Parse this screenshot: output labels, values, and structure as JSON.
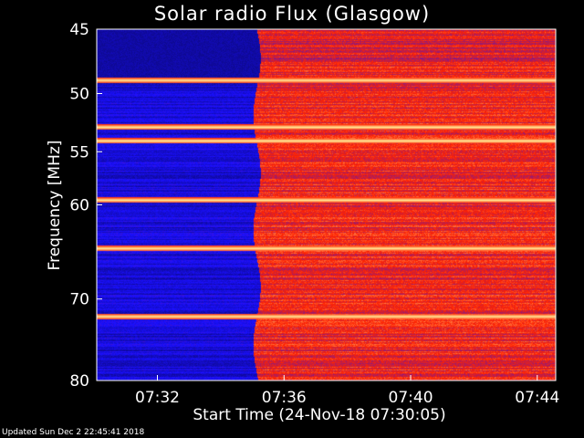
{
  "chart_data": {
    "type": "heatmap",
    "title": "Solar radio Flux (Glasgow)",
    "xlabel": "Start Time (24-Nov-18 07:30:05)",
    "ylabel": "Frequency [MHz]",
    "x_ticks": [
      "07:32",
      "07:36",
      "07:40",
      "07:44"
    ],
    "x_tick_minutes": [
      1.917,
      5.917,
      9.917,
      13.917
    ],
    "x_range_minutes": [
      0,
      14.5
    ],
    "y_ticks": [
      45,
      50,
      55,
      60,
      70,
      80
    ],
    "ylim": [
      45,
      80
    ],
    "y_scale": "log",
    "transition_minute": 5.05,
    "bright_bands_mhz": [
      48.9,
      52.8,
      54.0,
      59.5,
      64.4,
      72.0
    ],
    "colormap": [
      "#00000a",
      "#1a10ff",
      "#ff2200",
      "#ffee99"
    ],
    "footer": "Updated Sun Dec  2 22:45:41 2018"
  }
}
